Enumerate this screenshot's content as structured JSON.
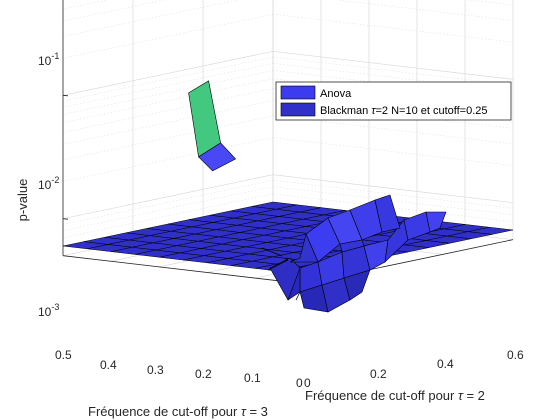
{
  "chart_data": {
    "type": "surface3d",
    "xlabel_prefix": "Fréquence de cut-off pour ",
    "xlabel_tau": "τ",
    "xlabel_suffix": " = 2",
    "ylabel_prefix": "Fréquence de cut-off pour ",
    "ylabel_tau": "τ",
    "ylabel_suffix": " = 3",
    "zlabel": "p-value",
    "x_ticks": [
      "0",
      "0.2",
      "0.4",
      "0.6"
    ],
    "y_ticks": [
      "0",
      "0.1",
      "0.2",
      "0.3",
      "0.4",
      "0.5"
    ],
    "z_ticks": [
      {
        "base": "10",
        "exp": "-3"
      },
      {
        "base": "10",
        "exp": "-2"
      },
      {
        "base": "10",
        "exp": "-1"
      }
    ],
    "zscale": "log",
    "grid": true,
    "legend_position": "top-right",
    "series": [
      {
        "name": "Anova",
        "color": "#3b3bef",
        "highlight_color": "#43c97f",
        "highlight_value": 0.0125
      },
      {
        "name_prefix": "Blackman ",
        "name_tau": "τ",
        "name_suffix": "=2 N=10 et cutoff=0.25",
        "color": "#3030c8",
        "value": 0.0006
      }
    ]
  }
}
